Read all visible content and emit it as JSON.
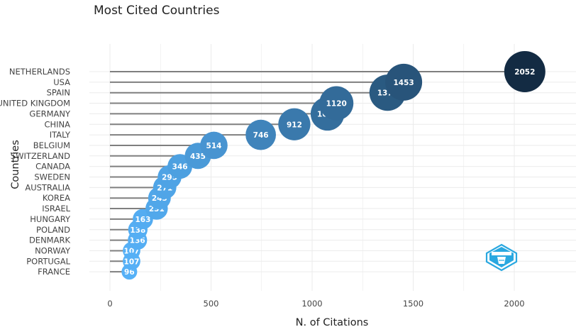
{
  "chart_data": {
    "type": "scatter",
    "title": "Most Cited Countries",
    "xlabel": "N. of Citations",
    "ylabel": "Countries",
    "xlim": [
      0,
      2200
    ],
    "xticks": [
      0,
      500,
      1000,
      1500,
      2000
    ],
    "grid": true,
    "categories": [
      "NETHERLANDS",
      "USA",
      "SPAIN",
      "UNITED KINGDOM",
      "GERMANY",
      "CHINA",
      "ITALY",
      "BELGIUM",
      "SWITZERLAND",
      "CANADA",
      "SWEDEN",
      "AUSTRALIA",
      "KOREA",
      "ISRAEL",
      "HUNGARY",
      "POLAND",
      "DENMARK",
      "NORWAY",
      "PORTUGAL",
      "FRANCE"
    ],
    "values": [
      2052,
      1453,
      1373,
      1120,
      1076,
      912,
      746,
      514,
      435,
      346,
      295,
      271,
      245,
      231,
      163,
      138,
      136,
      107,
      107,
      96
    ],
    "colors": {
      "low": "#56b1f7",
      "high": "#132b43",
      "segment": "#7f7f7f",
      "grid": "#ebebeb"
    }
  },
  "logo": {
    "icon": "bibliometrix-logo-icon"
  }
}
